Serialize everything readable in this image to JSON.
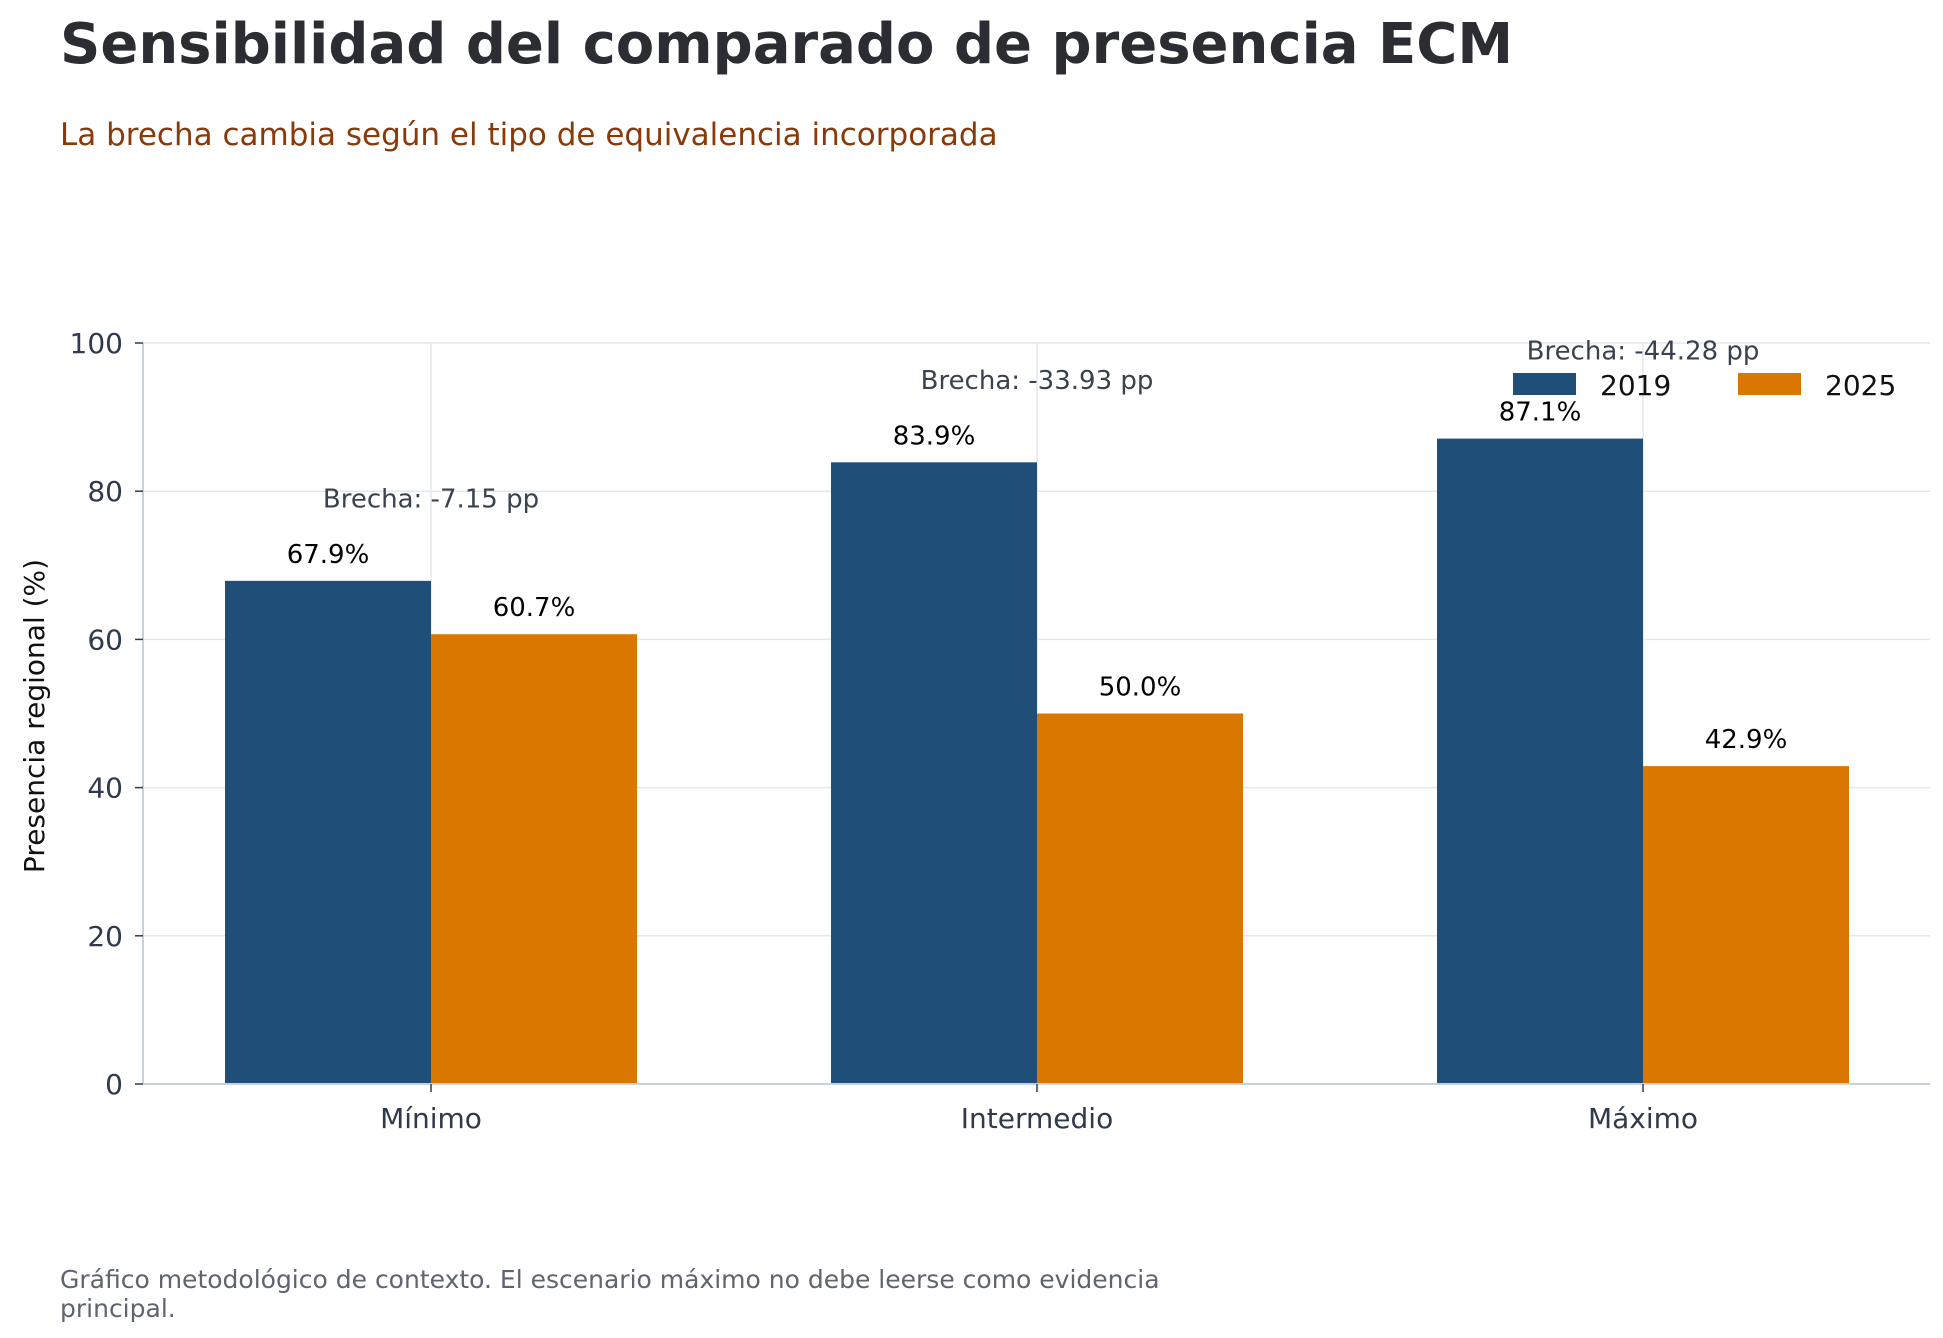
{
  "chart_data": {
    "type": "bar",
    "title": "Sensibilidad del comparado de presencia ECM",
    "subtitle": "La brecha cambia según el tipo de equivalencia incorporada",
    "ylabel": "Presencia regional (%)",
    "xlabel": "",
    "ylim": [
      0,
      100
    ],
    "yticks": [
      0,
      20,
      40,
      60,
      80,
      100
    ],
    "grid": true,
    "legend_position": "top-right",
    "categories": [
      "Mínimo",
      "Intermedio",
      "Máximo"
    ],
    "series": [
      {
        "name": "2019",
        "color": "#1f4e79",
        "values": [
          67.9,
          83.9,
          87.1
        ],
        "labels": [
          "67.9%",
          "83.9%",
          "87.1%"
        ]
      },
      {
        "name": "2025",
        "color": "#d97700",
        "values": [
          60.7,
          50.0,
          42.9
        ],
        "labels": [
          "60.7%",
          "50.0%",
          "42.9%"
        ]
      }
    ],
    "annotations": [
      {
        "category": "Mínimo",
        "text": "Brecha: -7.15 pp",
        "y": 79
      },
      {
        "category": "Intermedio",
        "text": "Brecha: -33.93 pp",
        "y": 95
      },
      {
        "category": "Máximo",
        "text": "Brecha: -44.28 pp",
        "y": 99
      }
    ],
    "footnote": [
      "Gráfico metodológico de contexto. El escenario máximo no debe leerse como evidencia",
      "principal."
    ]
  }
}
